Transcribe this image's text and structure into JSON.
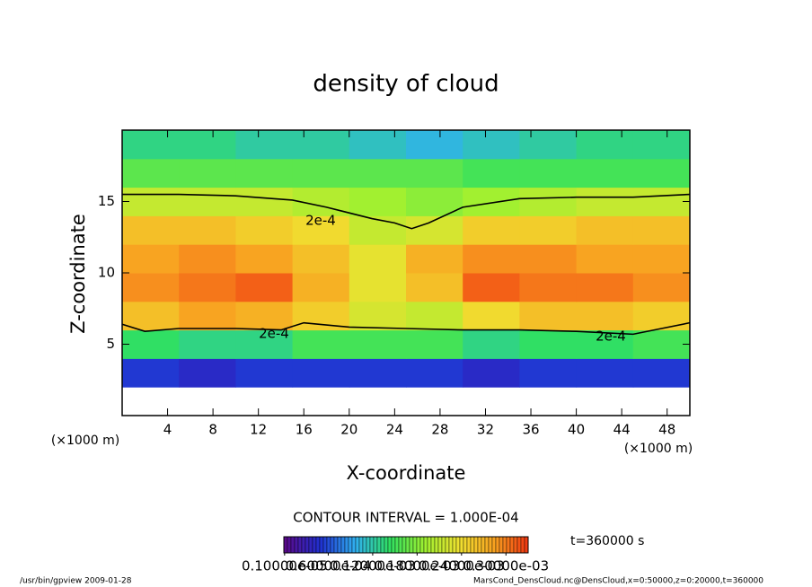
{
  "chart_data": {
    "type": "heatmap",
    "title": "density of cloud",
    "x_label": "X-coordinate",
    "y_label": "Z-coordinate",
    "x_unit": "(×1000 m)",
    "y_unit": "(×1000 m)",
    "xlim": [
      0,
      50
    ],
    "ylim": [
      0,
      20
    ],
    "xticks": [
      4,
      8,
      12,
      16,
      20,
      24,
      28,
      32,
      36,
      40,
      44,
      48
    ],
    "yticks": [
      5,
      10,
      15
    ],
    "x": [
      2.5,
      7.5,
      12.5,
      17.5,
      22.5,
      27.5,
      32.5,
      37.5,
      42.5,
      47.5
    ],
    "z": [
      1,
      3,
      5,
      7,
      9,
      11,
      13,
      15,
      17,
      19
    ],
    "values": [
      [
        null,
        null,
        null,
        null,
        null,
        null,
        null,
        null,
        null,
        null
      ],
      [
        5e-05,
        4e-05,
        5e-05,
        5e-05,
        5e-05,
        5e-05,
        4e-05,
        5e-05,
        5e-05,
        5e-05
      ],
      [
        0.00014,
        0.00013,
        0.00013,
        0.00015,
        0.00015,
        0.00015,
        0.00013,
        0.00014,
        0.00014,
        0.00015
      ],
      [
        0.00026,
        0.00028,
        0.00027,
        0.00025,
        0.00022,
        0.00021,
        0.00024,
        0.00026,
        0.00026,
        0.00025
      ],
      [
        0.00029,
        0.0003,
        0.00031,
        0.00027,
        0.00023,
        0.00026,
        0.00031,
        0.0003,
        0.0003,
        0.00029
      ],
      [
        0.00028,
        0.00029,
        0.00028,
        0.00026,
        0.00023,
        0.00027,
        0.00029,
        0.00029,
        0.00028,
        0.00028
      ],
      [
        0.00026,
        0.00026,
        0.00025,
        0.00024,
        0.00021,
        0.00022,
        0.00025,
        0.00025,
        0.00026,
        0.00026
      ],
      [
        0.00021,
        0.00021,
        0.00021,
        0.0002,
        0.00019,
        0.00018,
        0.00019,
        0.0002,
        0.00021,
        0.00021
      ],
      [
        0.00016,
        0.00016,
        0.00016,
        0.00016,
        0.00016,
        0.00016,
        0.00015,
        0.00015,
        0.00015,
        0.00015
      ],
      [
        0.00013,
        0.00013,
        0.00012,
        0.00012,
        0.00011,
        0.0001,
        0.00011,
        0.00012,
        0.00013,
        0.00013
      ]
    ],
    "colormap": [
      "#5a0a8c",
      "#2030d0",
      "#30b0f0",
      "#30e060",
      "#a0f030",
      "#f0e030",
      "#f8a020",
      "#f03010"
    ],
    "colorbar_lim": [
      0,
      0.00033
    ],
    "colorbar_ticks": [
      {
        "value": 1e-06,
        "label": "0.10000e-05"
      },
      {
        "value": 6e-05,
        "label": "0.60000e-04"
      },
      {
        "value": 0.00012,
        "label": "0.12000e-03"
      },
      {
        "value": 0.00018,
        "label": "0.18000e-03"
      },
      {
        "value": 0.00024,
        "label": "0.24000e-03"
      },
      {
        "value": 0.0003,
        "label": "0.30000e-03"
      }
    ],
    "contour": {
      "level": 0.0002,
      "label": "2e-4",
      "x": [
        0,
        5,
        10,
        15,
        18,
        22,
        24,
        25.5,
        27,
        30,
        35,
        40,
        45,
        50,
        null,
        0,
        2,
        5,
        10,
        14,
        16,
        20,
        25,
        30,
        35,
        40,
        45,
        50
      ],
      "z": [
        15.5,
        15.5,
        15.4,
        15.1,
        14.6,
        13.8,
        13.5,
        13.1,
        13.5,
        14.6,
        15.2,
        15.3,
        15.3,
        15.5,
        null,
        6.4,
        5.9,
        6.1,
        6.1,
        6.0,
        6.5,
        6.2,
        6.1,
        6.0,
        6.0,
        5.9,
        5.7,
        6.5
      ]
    },
    "contour_interval": "CONTOUR INTERVAL = 1.000E-04",
    "time": "t=360000 s",
    "footer_left": "/usr/bin/gpview   2009-01-28",
    "footer_right": "MarsCond_DensCloud.nc@DensCloud,x=0:50000,z=0:20000,t=360000"
  }
}
